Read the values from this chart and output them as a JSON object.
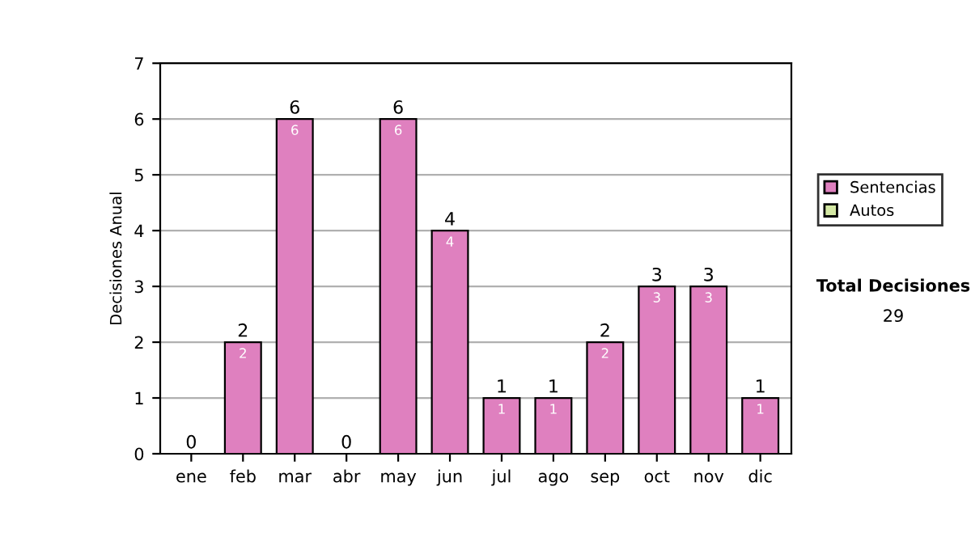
{
  "chart_data": {
    "type": "bar",
    "ylabel": "Decisiones Anual",
    "categories": [
      "ene",
      "feb",
      "mar",
      "abr",
      "may",
      "jun",
      "jul",
      "ago",
      "sep",
      "oct",
      "nov",
      "dic"
    ],
    "stacked": true,
    "series": [
      {
        "name": "Sentencias",
        "color": "#df80bf",
        "values": [
          0,
          2,
          6,
          0,
          6,
          4,
          1,
          1,
          2,
          3,
          3,
          1
        ],
        "value_labels": [
          null,
          "2",
          "6",
          null,
          "6",
          "4",
          "1",
          "1",
          "2",
          "3",
          "3",
          "1"
        ]
      },
      {
        "name": "Autos",
        "color": "#d4e8a4",
        "values": [
          0,
          0,
          0,
          0,
          0,
          0,
          0,
          0,
          0,
          0,
          0,
          0
        ],
        "value_labels": [
          null,
          null,
          null,
          null,
          null,
          null,
          null,
          null,
          null,
          null,
          null,
          null
        ]
      }
    ],
    "totals": [
      "0",
      "2",
      "6",
      "0",
      "6",
      "4",
      "1",
      "1",
      "2",
      "3",
      "3",
      "1"
    ],
    "ylim": [
      0,
      7
    ],
    "yticks": [
      0,
      1,
      2,
      3,
      4,
      5,
      6,
      7
    ],
    "grid": "y",
    "legend": "right",
    "annotations": [
      "Total Decisiones",
      "29"
    ]
  }
}
